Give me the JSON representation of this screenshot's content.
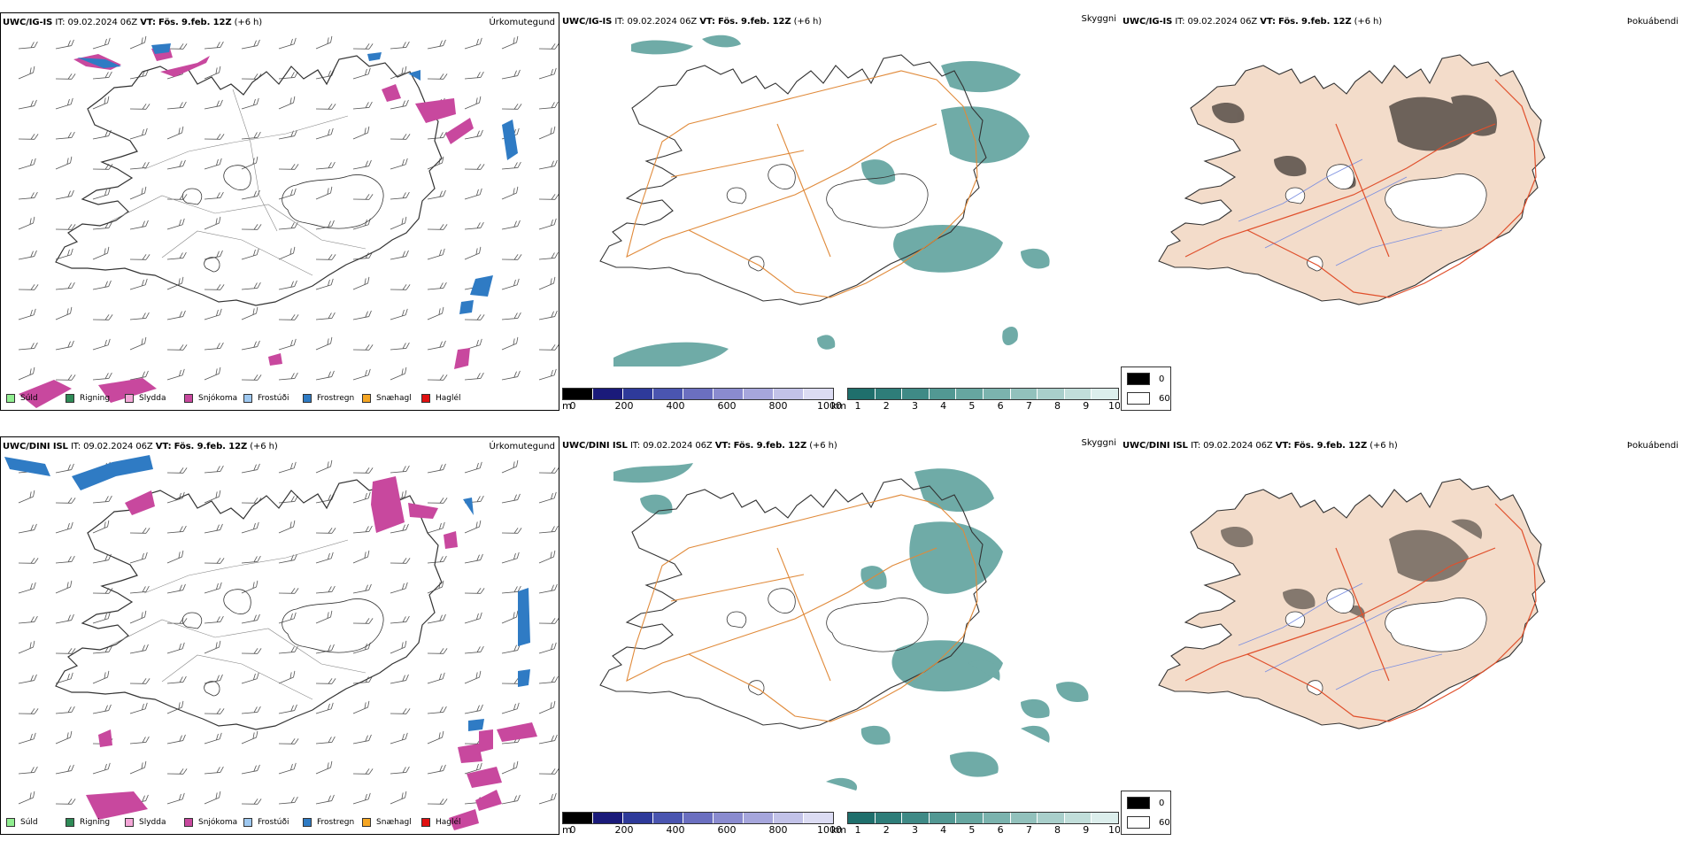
{
  "rows": [
    {
      "model": "UWC/IG-IS",
      "it_label": "IT:",
      "it_value": "09.02.2024 06Z",
      "vt_label": "VT:",
      "vt_value": "Fös. 9.feb. 12Z",
      "lead": "(+6 h)",
      "precip_title": "Úrkomutegund",
      "vis_title": "Skyggni",
      "cloud_title": "Þokuábendi"
    },
    {
      "model": "UWC/DINI ISL",
      "it_label": "IT:",
      "it_value": "09.02.2024 06Z",
      "vt_label": "VT:",
      "vt_value": "Fös. 9.feb. 12Z",
      "lead": "(+6 h)",
      "precip_title": "Úrkomutegund",
      "vis_title": "Skyggni",
      "cloud_title": "Þokuábendi"
    }
  ],
  "precip_legend": [
    {
      "label": "Súld",
      "color": "#90ee90"
    },
    {
      "label": "Rigning",
      "color": "#2e8b57"
    },
    {
      "label": "Slydda",
      "color": "#f4a6d7"
    },
    {
      "label": "Snjókoma",
      "color": "#c8489e"
    },
    {
      "label": "Frostúði",
      "color": "#9ec8f0"
    },
    {
      "label": "Frostregn",
      "color": "#2f7bc4"
    },
    {
      "label": "Snæhagl",
      "color": "#f5a623"
    },
    {
      "label": "Haglél",
      "color": "#e01010"
    }
  ],
  "height_bar": {
    "unit": "m",
    "ticks": [
      "0",
      "200",
      "400",
      "600",
      "800",
      "1000"
    ],
    "colors": [
      "#000000",
      "#1a1a7a",
      "#2e3a9a",
      "#4a55b0",
      "#6b6fc0",
      "#8a8bcf",
      "#a6a6dc",
      "#c2c2e8",
      "#dcdcf3"
    ]
  },
  "vis_bar": {
    "unit": "km",
    "ticks": [
      "1",
      "2",
      "3",
      "4",
      "5",
      "6",
      "7",
      "8",
      "9",
      "10"
    ],
    "colors": [
      "#1f6f6c",
      "#2e7d79",
      "#3f8a86",
      "#529893",
      "#66a6a0",
      "#7bb3ae",
      "#92c1bc",
      "#a9cfcb",
      "#c1deda",
      "#dceeec"
    ]
  },
  "cloud_legend": {
    "low": "0",
    "high": "60"
  },
  "colors": {
    "snow": "#c8489e",
    "frostregn": "#2f7bc4",
    "vis_fill": "#3f8f8a",
    "roads": "#e08a3a",
    "red_roads": "#e0502c",
    "land": "#f3dcca",
    "rivers": "#7a8ee0"
  }
}
